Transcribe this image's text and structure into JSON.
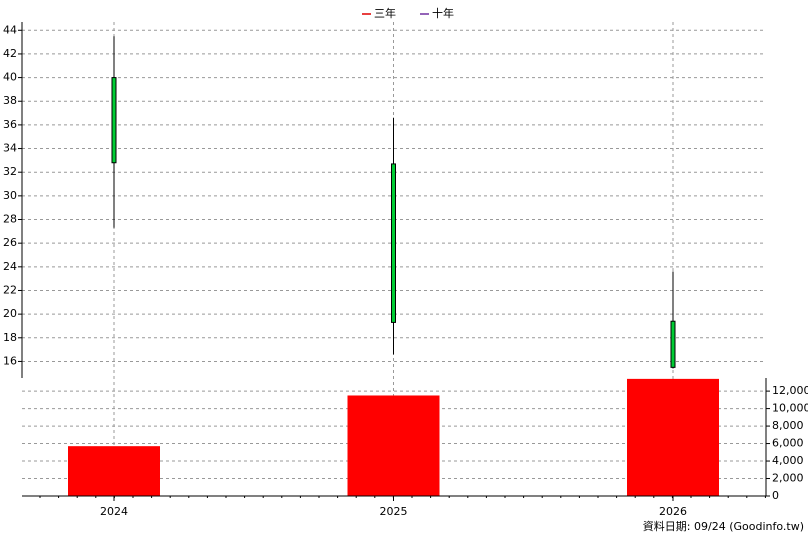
{
  "chart_data": [
    {
      "type": "candlestick",
      "legend": [
        {
          "name": "三年",
          "color": "#e00000"
        },
        {
          "name": "十年",
          "color": "#7030a0"
        }
      ],
      "categories": [
        "2024",
        "2025",
        "2026"
      ],
      "open": [
        40,
        32.7,
        19.4
      ],
      "high": [
        43.5,
        36.6,
        23.6
      ],
      "low": [
        27.3,
        16.6,
        15.4
      ],
      "close": [
        32.8,
        19.3,
        15.5
      ],
      "color": "#00cc33",
      "ylim": [
        14.6,
        44.7
      ],
      "yticks": [
        16,
        18,
        20,
        22,
        24,
        26,
        28,
        30,
        32,
        34,
        36,
        38,
        40,
        42,
        44
      ],
      "grid": true
    },
    {
      "type": "bar",
      "categories": [
        "2024",
        "2025",
        "2026"
      ],
      "values": [
        5700,
        11500,
        13400
      ],
      "color": "#ff0000",
      "ylim": [
        0,
        13500
      ],
      "yticks": [
        0,
        {
          "value": 2000,
          "label": "2,000"
        },
        {
          "value": 4000,
          "label": "4,000"
        },
        {
          "value": 6000,
          "label": "6,000"
        },
        {
          "value": 8000,
          "label": "8,000"
        },
        {
          "value": 10000,
          "label": "10,000"
        },
        {
          "value": 12000,
          "label": "12,000"
        }
      ],
      "grid": true,
      "footnote": "資料日期: 09/24  (Goodinfo.tw)"
    }
  ]
}
